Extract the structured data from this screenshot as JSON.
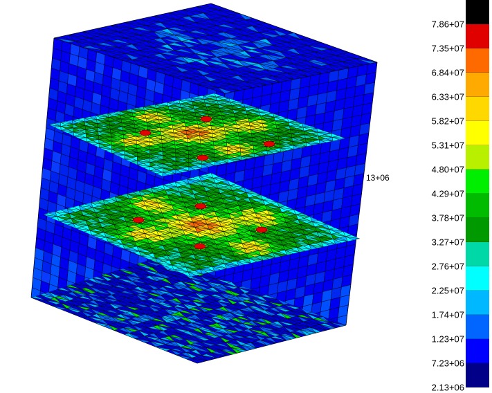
{
  "legend": {
    "labels": [
      "7.86+07",
      "7.35+07",
      "6.84+07",
      "6.33+07",
      "5.82+07",
      "5.31+07",
      "4.80+07",
      "4.29+07",
      "3.78+07",
      "3.27+07",
      "2.76+07",
      "2.25+07",
      "1.74+07",
      "1.23+07",
      "7.23+06",
      "2.13+06"
    ],
    "colors": [
      "#000000",
      "#e00000",
      "#ff6a00",
      "#ffaa00",
      "#ffd800",
      "#ffff00",
      "#b8f000",
      "#00ee00",
      "#00bb00",
      "#009900",
      "#00d8a8",
      "#00ffff",
      "#00b8ff",
      "#0066ff",
      "#0000ff",
      "#000088"
    ]
  },
  "annotations": {
    "probe_label": "13+06"
  }
}
